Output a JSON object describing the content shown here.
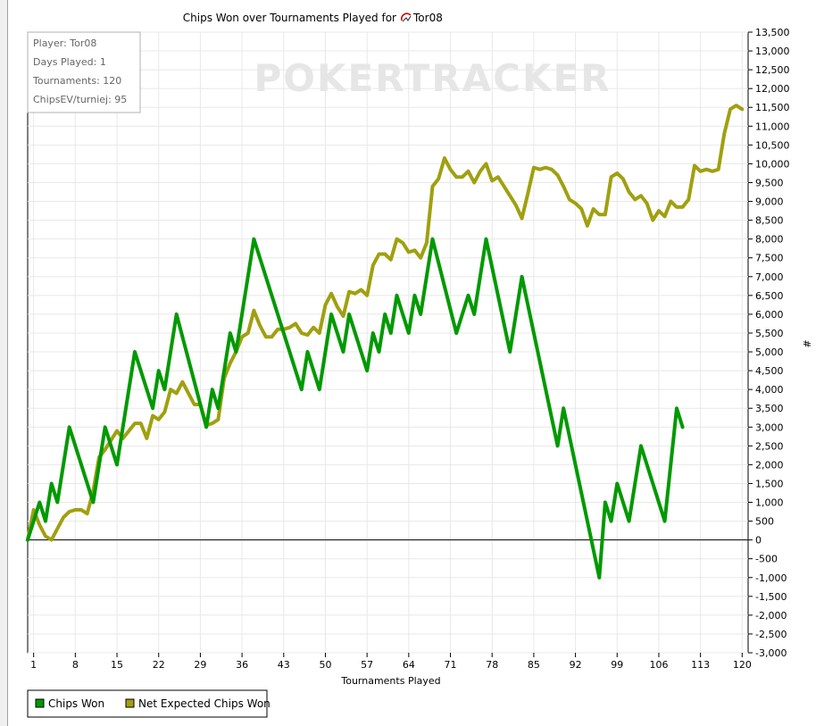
{
  "chart_data": {
    "type": "line",
    "title": "Chips Won over Tournaments Played for",
    "player_label": "Tor08",
    "xlabel": "Tournaments Played",
    "ylabel": "#",
    "x_ticks": [
      "1",
      "8",
      "15",
      "22",
      "29",
      "36",
      "43",
      "50",
      "57",
      "64",
      "71",
      "78",
      "85",
      "92",
      "99",
      "106",
      "113",
      "120"
    ],
    "y_ticks": [
      "13,500",
      "13,000",
      "12,500",
      "12,000",
      "11,500",
      "11,000",
      "10,500",
      "10,000",
      "9,500",
      "9,000",
      "8,500",
      "8,000",
      "7,500",
      "7,000",
      "6,500",
      "6,000",
      "5,500",
      "5,000",
      "4,500",
      "4,000",
      "3,500",
      "3,000",
      "2,500",
      "2,000",
      "1,500",
      "1,000",
      "500",
      "0",
      "-500",
      "-1,000",
      "-1,500",
      "-2,000",
      "-2,500",
      "-3,000"
    ],
    "xlim": [
      0,
      121
    ],
    "ylim": [
      -3000,
      13500
    ],
    "grid": true,
    "legend_placement": "bottom-left",
    "watermark": "POKERTRACKER",
    "info_box": [
      "Player: Tor08",
      "Days Played: 1",
      "Tournaments: 120",
      "ChipsEV/turniej: 95"
    ],
    "series": [
      {
        "name": "Chips Won",
        "color": "#009900",
        "points": [
          [
            0,
            0
          ],
          [
            2,
            1000
          ],
          [
            3,
            500
          ],
          [
            4,
            1500
          ],
          [
            5,
            1000
          ],
          [
            7,
            3000
          ],
          [
            11,
            1000
          ],
          [
            13,
            3000
          ],
          [
            15,
            2000
          ],
          [
            18,
            5000
          ],
          [
            21,
            3500
          ],
          [
            22,
            4500
          ],
          [
            23,
            4000
          ],
          [
            25,
            6000
          ],
          [
            30,
            3000
          ],
          [
            31,
            4000
          ],
          [
            32,
            3500
          ],
          [
            34,
            5500
          ],
          [
            35,
            5000
          ],
          [
            38,
            8000
          ],
          [
            46,
            4000
          ],
          [
            47,
            5000
          ],
          [
            49,
            4000
          ],
          [
            51,
            6000
          ],
          [
            53,
            5000
          ],
          [
            54,
            6000
          ],
          [
            57,
            4500
          ],
          [
            58,
            5500
          ],
          [
            59,
            5000
          ],
          [
            60,
            6000
          ],
          [
            61,
            5500
          ],
          [
            62,
            6500
          ],
          [
            64,
            5500
          ],
          [
            65,
            6500
          ],
          [
            66,
            6000
          ],
          [
            68,
            8000
          ],
          [
            72,
            5500
          ],
          [
            74,
            6500
          ],
          [
            75,
            6000
          ],
          [
            77,
            8000
          ],
          [
            81,
            5000
          ],
          [
            83,
            7000
          ],
          [
            89,
            2500
          ],
          [
            90,
            3500
          ],
          [
            96,
            -1000
          ],
          [
            97,
            1000
          ],
          [
            98,
            500
          ],
          [
            99,
            1500
          ],
          [
            101,
            500
          ],
          [
            103,
            2500
          ],
          [
            107,
            500
          ],
          [
            109,
            3500
          ],
          [
            110,
            3000
          ]
        ]
      },
      {
        "name": "Net Expected Chips Won",
        "color": "#a0a010",
        "points": [
          [
            0,
            0
          ],
          [
            1,
            800
          ],
          [
            2,
            400
          ],
          [
            3,
            100
          ],
          [
            4,
            0
          ],
          [
            5,
            300
          ],
          [
            6,
            600
          ],
          [
            7,
            750
          ],
          [
            8,
            800
          ],
          [
            9,
            800
          ],
          [
            10,
            700
          ],
          [
            11,
            1300
          ],
          [
            12,
            2200
          ],
          [
            13,
            2400
          ],
          [
            15,
            2900
          ],
          [
            16,
            2700
          ],
          [
            17,
            2900
          ],
          [
            18,
            3100
          ],
          [
            19,
            3100
          ],
          [
            20,
            2700
          ],
          [
            21,
            3300
          ],
          [
            22,
            3200
          ],
          [
            23,
            3400
          ],
          [
            24,
            4000
          ],
          [
            25,
            3900
          ],
          [
            26,
            4200
          ],
          [
            27,
            3900
          ],
          [
            28,
            3600
          ],
          [
            29,
            3600
          ],
          [
            30,
            3050
          ],
          [
            31,
            3100
          ],
          [
            32,
            3200
          ],
          [
            33,
            4300
          ],
          [
            34,
            4700
          ],
          [
            35,
            5000
          ],
          [
            36,
            5400
          ],
          [
            37,
            5500
          ],
          [
            38,
            6100
          ],
          [
            39,
            5700
          ],
          [
            40,
            5400
          ],
          [
            41,
            5400
          ],
          [
            42,
            5600
          ],
          [
            43,
            5600
          ],
          [
            44,
            5650
          ],
          [
            45,
            5750
          ],
          [
            46,
            5500
          ],
          [
            47,
            5450
          ],
          [
            48,
            5650
          ],
          [
            49,
            5500
          ],
          [
            50,
            6250
          ],
          [
            51,
            6550
          ],
          [
            52,
            6200
          ],
          [
            53,
            5950
          ],
          [
            54,
            6600
          ],
          [
            55,
            6550
          ],
          [
            56,
            6650
          ],
          [
            57,
            6500
          ],
          [
            58,
            7300
          ],
          [
            59,
            7600
          ],
          [
            60,
            7600
          ],
          [
            61,
            7450
          ],
          [
            62,
            8000
          ],
          [
            63,
            7900
          ],
          [
            64,
            7650
          ],
          [
            65,
            7700
          ],
          [
            66,
            7500
          ],
          [
            67,
            7900
          ],
          [
            68,
            9400
          ],
          [
            69,
            9600
          ],
          [
            70,
            10150
          ],
          [
            71,
            9850
          ],
          [
            72,
            9650
          ],
          [
            73,
            9650
          ],
          [
            74,
            9800
          ],
          [
            75,
            9500
          ],
          [
            76,
            9800
          ],
          [
            77,
            10000
          ],
          [
            78,
            9550
          ],
          [
            79,
            9650
          ],
          [
            80,
            9400
          ],
          [
            81,
            9150
          ],
          [
            82,
            8900
          ],
          [
            83,
            8550
          ],
          [
            84,
            9200
          ],
          [
            85,
            9900
          ],
          [
            86,
            9850
          ],
          [
            87,
            9900
          ],
          [
            88,
            9850
          ],
          [
            89,
            9700
          ],
          [
            90,
            9400
          ],
          [
            91,
            9050
          ],
          [
            92,
            8950
          ],
          [
            93,
            8800
          ],
          [
            94,
            8350
          ],
          [
            95,
            8800
          ],
          [
            96,
            8650
          ],
          [
            97,
            8650
          ],
          [
            98,
            9650
          ],
          [
            99,
            9750
          ],
          [
            100,
            9600
          ],
          [
            101,
            9250
          ],
          [
            102,
            9050
          ],
          [
            103,
            9150
          ],
          [
            104,
            8950
          ],
          [
            105,
            8500
          ],
          [
            106,
            8750
          ],
          [
            107,
            8600
          ],
          [
            108,
            9000
          ],
          [
            109,
            8850
          ],
          [
            110,
            8850
          ],
          [
            111,
            9050
          ],
          [
            112,
            9950
          ],
          [
            113,
            9800
          ],
          [
            114,
            9850
          ],
          [
            115,
            9800
          ],
          [
            116,
            9850
          ],
          [
            117,
            10800
          ],
          [
            118,
            11450
          ],
          [
            119,
            11550
          ],
          [
            120,
            11450
          ]
        ]
      }
    ]
  }
}
